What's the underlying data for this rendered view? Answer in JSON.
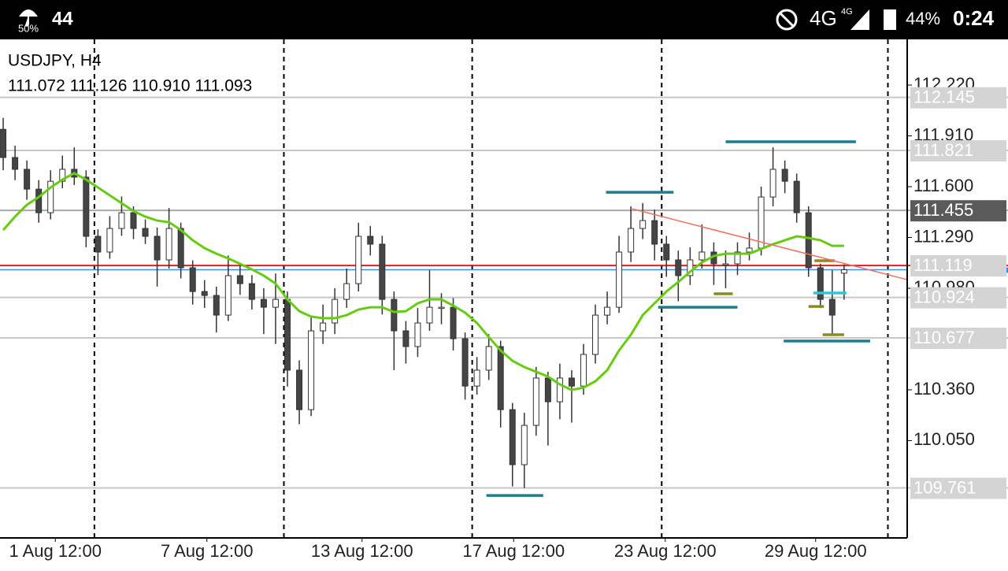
{
  "status_bar": {
    "saver": "50%",
    "notification": "44",
    "network": "4G",
    "network_small": "4G",
    "battery": "44%",
    "time": "0:24"
  },
  "chart_data": {
    "type": "candlestick",
    "title": "USDJPY, H4",
    "subtitle": "111.072 111.126 110.910 111.093",
    "bull_color": "#ffffff",
    "bear_color": "#454545",
    "xlim": [
      -0.27,
      76.33
    ],
    "ylim": [
      109.456,
      112.499
    ],
    "yticks": [
      {
        "value": 112.22,
        "label": "112.220"
      },
      {
        "value": 111.91,
        "label": "111.910"
      },
      {
        "value": 111.6,
        "label": "111.600"
      },
      {
        "value": 111.29,
        "label": "111.290"
      },
      {
        "value": 110.98,
        "label": "110.980"
      },
      {
        "value": 110.36,
        "label": "110.360"
      },
      {
        "value": 110.05,
        "label": "110.050"
      }
    ],
    "xticks": [
      {
        "value": 4.4,
        "label": "1 Aug 12:00"
      },
      {
        "value": 17.2,
        "label": "7 Aug 12:00"
      },
      {
        "value": 30.3,
        "label": "13 Aug 12:00"
      },
      {
        "value": 43.1,
        "label": "17 Aug 12:00"
      },
      {
        "value": 55.9,
        "label": "23 Aug 12:00"
      },
      {
        "value": 68.6,
        "label": "29 Aug 12:00"
      }
    ],
    "separators": [
      7.7,
      23.7,
      39.6,
      55.6,
      74.7
    ],
    "open": [
      111.95,
      111.778,
      111.706,
      111.585,
      111.441,
      111.633,
      111.706,
      111.658,
      111.297,
      111.201,
      111.345,
      111.441,
      111.345,
      111.297,
      111.153,
      111.345,
      111.105,
      110.96,
      110.936,
      110.816,
      111.057,
      111.008,
      110.912,
      110.864,
      110.912,
      110.48,
      110.239,
      110.72,
      110.768,
      110.912,
      111.008,
      111.297,
      111.249,
      110.912,
      110.72,
      110.624,
      110.768,
      110.864,
      110.864,
      110.672,
      110.383,
      110.48,
      110.624,
      110.239,
      109.903,
      110.143,
      110.432,
      110.287,
      110.432,
      110.383,
      110.576,
      110.816,
      110.864,
      111.201,
      111.345,
      111.393,
      111.249,
      111.153,
      111.057,
      111.153,
      111.201,
      111.129,
      111.129,
      111.201,
      111.225,
      111.537,
      111.706,
      111.633,
      111.441,
      111.105,
      110.912,
      111.072
    ],
    "high": [
      112.02,
      111.85,
      111.76,
      111.64,
      111.7,
      111.79,
      111.84,
      111.7,
      111.34,
      111.42,
      111.54,
      111.48,
      111.4,
      111.35,
      111.47,
      111.38,
      111.15,
      111.03,
      110.99,
      111.18,
      111.13,
      111.06,
      110.98,
      111.07,
      110.96,
      110.54,
      110.8,
      110.88,
      110.98,
      111.1,
      111.38,
      111.36,
      111.3,
      110.96,
      110.78,
      110.86,
      111.09,
      110.95,
      110.92,
      110.71,
      110.56,
      110.7,
      110.66,
      110.28,
      110.22,
      110.5,
      110.47,
      110.52,
      110.48,
      110.64,
      110.88,
      110.96,
      111.3,
      111.48,
      111.5,
      111.46,
      111.3,
      111.21,
      111.23,
      111.37,
      111.26,
      111.21,
      111.26,
      111.32,
      111.6,
      111.84,
      111.76,
      111.68,
      111.48,
      111.13,
      111.09,
      111.126
    ],
    "low": [
      111.7,
      111.64,
      111.52,
      111.38,
      111.4,
      111.59,
      111.61,
      111.23,
      111.06,
      111.16,
      111.3,
      111.28,
      111.25,
      110.99,
      111.1,
      111.04,
      110.88,
      110.86,
      110.71,
      110.78,
      110.94,
      110.85,
      110.7,
      110.64,
      110.38,
      110.15,
      110.2,
      110.64,
      110.7,
      110.86,
      110.96,
      111.18,
      110.82,
      110.48,
      110.52,
      110.56,
      110.72,
      110.76,
      110.6,
      110.3,
      110.33,
      110.42,
      110.13,
      109.77,
      109.76,
      110.08,
      110.02,
      110.18,
      110.16,
      110.33,
      110.52,
      110.76,
      110.83,
      111.14,
      111.28,
      111.15,
      111.05,
      110.9,
      111,
      111.1,
      111,
      110.98,
      111.06,
      111.15,
      111.18,
      111.48,
      111.56,
      111.38,
      111.05,
      110.86,
      110.7,
      110.91
    ],
    "close": [
      111.778,
      111.706,
      111.585,
      111.441,
      111.633,
      111.706,
      111.658,
      111.297,
      111.201,
      111.345,
      111.441,
      111.345,
      111.297,
      111.153,
      111.345,
      111.105,
      110.96,
      110.936,
      110.816,
      111.057,
      111.008,
      110.912,
      110.864,
      110.912,
      110.48,
      110.239,
      110.72,
      110.768,
      110.912,
      111.008,
      111.297,
      111.249,
      110.912,
      110.72,
      110.624,
      110.768,
      110.864,
      110.864,
      110.672,
      110.383,
      110.48,
      110.624,
      110.239,
      109.903,
      110.143,
      110.432,
      110.287,
      110.432,
      110.383,
      110.576,
      110.816,
      110.864,
      111.201,
      111.345,
      111.393,
      111.249,
      111.153,
      111.057,
      111.153,
      111.201,
      111.129,
      111.129,
      111.201,
      111.225,
      111.537,
      111.706,
      111.633,
      111.441,
      111.105,
      110.912,
      110.816,
      111.093
    ],
    "ma": {
      "color": "#66cc11",
      "values": [
        111.335,
        111.417,
        111.489,
        111.537,
        111.595,
        111.643,
        111.682,
        111.643,
        111.595,
        111.547,
        111.499,
        111.451,
        111.417,
        111.393,
        111.383,
        111.335,
        111.273,
        111.225,
        111.191,
        111.162,
        111.129,
        111.095,
        111.057,
        111.008,
        110.912,
        110.84,
        110.807,
        110.797,
        110.797,
        110.816,
        110.85,
        110.864,
        110.864,
        110.835,
        110.84,
        110.888,
        110.912,
        110.912,
        110.874,
        110.831,
        110.768,
        110.682,
        110.6,
        110.537,
        110.499,
        110.47,
        110.441,
        110.393,
        110.359,
        110.374,
        110.412,
        110.48,
        110.6,
        110.696,
        110.816,
        110.888,
        110.96,
        111.018,
        111.081,
        111.138,
        111.177,
        111.191,
        111.191,
        111.191,
        111.22,
        111.249,
        111.273,
        111.297,
        111.287,
        111.273,
        111.239,
        111.239
      ]
    },
    "levels": [
      {
        "value": 112.145,
        "color": "#c8c8c8",
        "label_bg": "#d4d4d4"
      },
      {
        "value": 111.821,
        "color": "#c8c8c8",
        "label_bg": "#d4d4d4"
      },
      {
        "value": 111.455,
        "color": "#a8a8a8",
        "label_bg": "#5a5a5a"
      },
      {
        "value": 111.119,
        "color": "#e02020",
        "label_bg": "#d4d4d4"
      },
      {
        "value": 110.924,
        "color": "#c8c8c8",
        "label_bg": "#d4d4d4"
      },
      {
        "value": 110.677,
        "color": "#c8c8c8",
        "label_bg": "#d4d4d4"
      },
      {
        "value": 109.761,
        "color": "#c8c8c8",
        "label_bg": "#d4d4d4"
      }
    ],
    "bid": {
      "value": 111.093,
      "color": "#3d8fe8"
    },
    "drawn_lines": [
      {
        "color": "#1a7f8c",
        "x": [
          50.9,
          56.6
        ],
        "y": [
          111.566,
          111.566
        ]
      },
      {
        "color": "#1a7f8c",
        "x": [
          61,
          72
        ],
        "y": [
          111.874,
          111.874
        ]
      },
      {
        "color": "#1a7f8c",
        "x": [
          55.3,
          62
        ],
        "y": [
          110.864,
          110.864
        ]
      },
      {
        "color": "#1a7f8c",
        "x": [
          40.8,
          45.6
        ],
        "y": [
          109.715,
          109.715
        ]
      },
      {
        "color": "#1a7f8c",
        "x": [
          65.9,
          73.2
        ],
        "y": [
          110.658,
          110.658
        ]
      },
      {
        "color": "#33c5d6",
        "x": [
          68.4,
          71.2
        ],
        "y": [
          110.951,
          110.951
        ]
      },
      {
        "color": "#8a8a20",
        "x": [
          60,
          61.6
        ],
        "y": [
          110.946,
          110.946
        ]
      },
      {
        "color": "#8a8a20",
        "x": [
          68,
          69.3
        ],
        "y": [
          110.869,
          110.869
        ]
      },
      {
        "color": "#8a8a20",
        "x": [
          69.2,
          71
        ],
        "y": [
          110.696,
          110.696
        ]
      },
      {
        "color": "#8a8a20",
        "x": [
          68.5,
          70.2
        ],
        "y": [
          111.148,
          111.148
        ]
      },
      {
        "color": "#f07060",
        "x": [
          53.1,
          76.3
        ],
        "y": [
          111.465,
          111.033
        ]
      }
    ]
  }
}
